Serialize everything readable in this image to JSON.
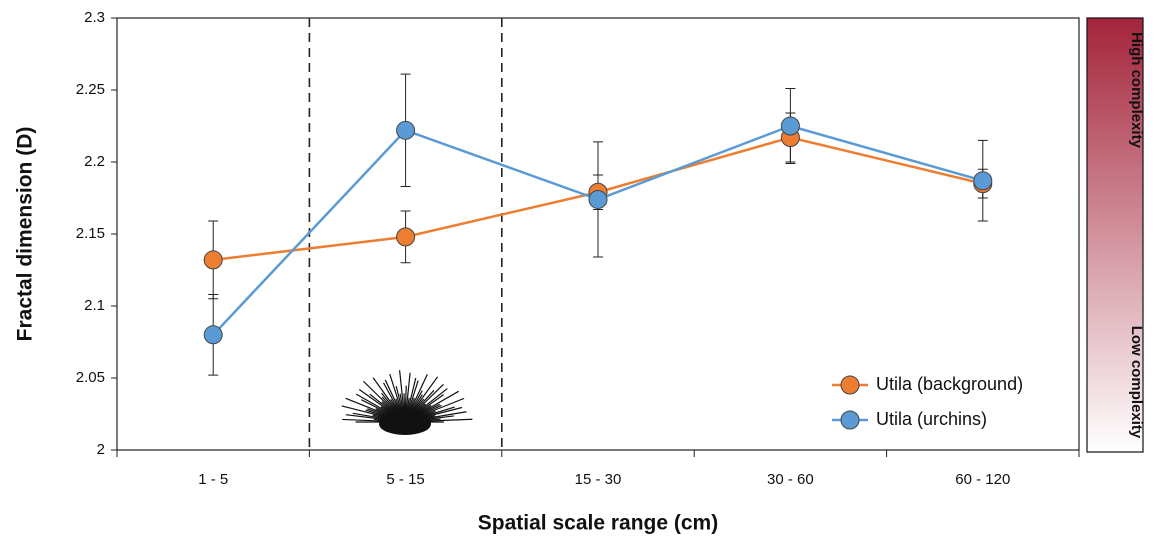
{
  "chart_data": {
    "type": "line",
    "x_label": "Spatial scale range (cm)",
    "y_label": "Fractal dimension (D)",
    "categories": [
      "1 - 5",
      "5 - 15",
      "15 - 30",
      "30 - 60",
      "60 - 120"
    ],
    "series": [
      {
        "name": "Utila (background)",
        "color": "#ed7d31",
        "values": [
          2.132,
          2.148,
          2.179,
          2.217,
          2.185
        ],
        "errors": [
          0.027,
          0.018,
          0.012,
          0.017,
          0.01
        ]
      },
      {
        "name": "Utila (urchins)",
        "color": "#5b9bd5",
        "values": [
          2.08,
          2.222,
          2.174,
          2.225,
          2.187
        ],
        "errors": [
          0.028,
          0.039,
          0.04,
          0.026,
          0.028
        ]
      }
    ],
    "ylim": [
      2,
      2.3
    ],
    "yticks": [
      2,
      2.05,
      2.1,
      2.15,
      2.2,
      2.25,
      2.3
    ],
    "legend": "lower-right",
    "colorbar_labels": [
      "High complexity",
      "Low complexity"
    ],
    "colorbar_colors": [
      "#a4243b",
      "#ffffff"
    ]
  }
}
